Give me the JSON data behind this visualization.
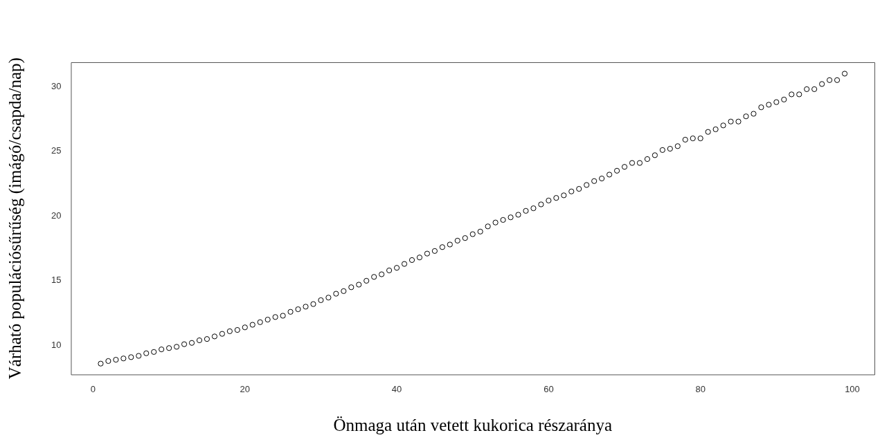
{
  "chart_data": {
    "type": "scatter",
    "xlabel": "Önmaga után vetett kukorica részaránya",
    "ylabel": "Várható populációsűrűség (imágó/csapda/nap)",
    "x": [
      1,
      2,
      3,
      4,
      5,
      6,
      7,
      8,
      9,
      10,
      11,
      12,
      13,
      14,
      15,
      16,
      17,
      18,
      19,
      20,
      21,
      22,
      23,
      24,
      25,
      26,
      27,
      28,
      29,
      30,
      31,
      32,
      33,
      34,
      35,
      36,
      37,
      38,
      39,
      40,
      41,
      42,
      43,
      44,
      45,
      46,
      47,
      48,
      49,
      50,
      51,
      52,
      53,
      54,
      55,
      56,
      57,
      58,
      59,
      60,
      61,
      62,
      63,
      64,
      65,
      66,
      67,
      68,
      69,
      70,
      71,
      72,
      73,
      74,
      75,
      76,
      77,
      78,
      79,
      80,
      81,
      82,
      83,
      84,
      85,
      86,
      87,
      88,
      89,
      90,
      91,
      92,
      93,
      94,
      95,
      96,
      97,
      98,
      99
    ],
    "values": [
      8.6,
      8.8,
      8.9,
      9.0,
      9.1,
      9.2,
      9.4,
      9.5,
      9.7,
      9.8,
      9.9,
      10.1,
      10.2,
      10.4,
      10.5,
      10.7,
      10.9,
      11.1,
      11.2,
      11.4,
      11.6,
      11.8,
      12.0,
      12.2,
      12.3,
      12.6,
      12.8,
      13.0,
      13.2,
      13.5,
      13.7,
      14.0,
      14.2,
      14.5,
      14.7,
      15.0,
      15.3,
      15.5,
      15.8,
      16.0,
      16.3,
      16.6,
      16.8,
      17.1,
      17.3,
      17.6,
      17.8,
      18.1,
      18.3,
      18.6,
      18.8,
      19.2,
      19.5,
      19.7,
      19.9,
      20.1,
      20.4,
      20.6,
      20.9,
      21.2,
      21.4,
      21.6,
      21.9,
      22.1,
      22.4,
      22.7,
      22.9,
      23.2,
      23.5,
      23.8,
      24.1,
      24.1,
      24.4,
      24.7,
      25.1,
      25.2,
      25.4,
      25.9,
      26.0,
      26.0,
      26.5,
      26.7,
      27.0,
      27.3,
      27.3,
      27.7,
      27.9,
      28.4,
      28.6,
      28.8,
      29.0,
      29.4,
      29.4,
      29.8,
      29.8,
      30.2,
      30.5,
      30.5,
      31.0
    ],
    "color": "#000000",
    "marker": "circle",
    "xlim": [
      -2.92,
      102.92
    ],
    "xticks": [
      0,
      20,
      40,
      60,
      80,
      100
    ],
    "ylim": [
      7.76,
      31.88
    ],
    "yticks": [
      10,
      15,
      20,
      25,
      30
    ]
  }
}
